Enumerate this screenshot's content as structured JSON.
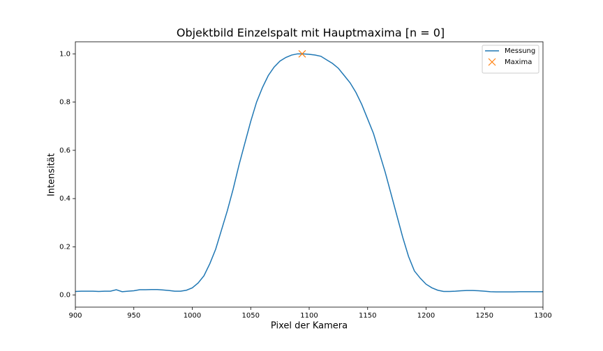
{
  "chart_data": {
    "type": "line",
    "title": "Objektbild Einzelspalt mit Hauptmaxima [n = 0]",
    "xlabel": "Pixel der Kamera",
    "ylabel": "Intensität",
    "xlim": [
      900,
      1300
    ],
    "ylim": [
      -0.05,
      1.05
    ],
    "xticks": [
      900,
      950,
      1000,
      1050,
      1100,
      1150,
      1200,
      1250,
      1300
    ],
    "yticks": [
      {
        "value": 0,
        "label": "0.0"
      },
      0.2,
      0.4,
      0.6,
      0.8,
      {
        "value": 1,
        "label": "1.0"
      }
    ],
    "grid": false,
    "legend": "upper right",
    "series": [
      {
        "name": "Messung",
        "color": "#1f77b4",
        "type": "line",
        "x": [
          900,
          905,
          910,
          915,
          920,
          925,
          930,
          935,
          940,
          945,
          950,
          955,
          960,
          965,
          970,
          975,
          980,
          985,
          990,
          995,
          1000,
          1005,
          1010,
          1015,
          1020,
          1025,
          1030,
          1035,
          1040,
          1045,
          1050,
          1055,
          1060,
          1065,
          1070,
          1075,
          1080,
          1085,
          1090,
          1095,
          1100,
          1105,
          1110,
          1115,
          1120,
          1125,
          1130,
          1135,
          1140,
          1145,
          1150,
          1155,
          1160,
          1165,
          1170,
          1175,
          1180,
          1185,
          1190,
          1195,
          1200,
          1205,
          1210,
          1215,
          1220,
          1225,
          1230,
          1235,
          1240,
          1245,
          1250,
          1255,
          1260,
          1265,
          1270,
          1275,
          1280,
          1285,
          1290,
          1295,
          1300
        ],
        "values": [
          0.015,
          0.016,
          0.016,
          0.016,
          0.015,
          0.016,
          0.016,
          0.022,
          0.014,
          0.016,
          0.018,
          0.022,
          0.022,
          0.023,
          0.023,
          0.021,
          0.019,
          0.016,
          0.016,
          0.02,
          0.03,
          0.05,
          0.08,
          0.13,
          0.19,
          0.27,
          0.35,
          0.44,
          0.54,
          0.63,
          0.72,
          0.8,
          0.86,
          0.91,
          0.945,
          0.97,
          0.985,
          0.995,
          1.0,
          1.0,
          0.998,
          0.995,
          0.99,
          0.975,
          0.96,
          0.94,
          0.91,
          0.88,
          0.84,
          0.79,
          0.73,
          0.67,
          0.59,
          0.51,
          0.42,
          0.33,
          0.24,
          0.16,
          0.1,
          0.07,
          0.045,
          0.03,
          0.02,
          0.015,
          0.015,
          0.016,
          0.018,
          0.019,
          0.019,
          0.018,
          0.016,
          0.014,
          0.013,
          0.013,
          0.013,
          0.013,
          0.014,
          0.014,
          0.014,
          0.014,
          0.014
        ]
      },
      {
        "name": "Maxima",
        "color": "#ff7f0e",
        "type": "scatter",
        "marker": "x",
        "x": [
          1094
        ],
        "values": [
          1.0
        ]
      }
    ]
  }
}
